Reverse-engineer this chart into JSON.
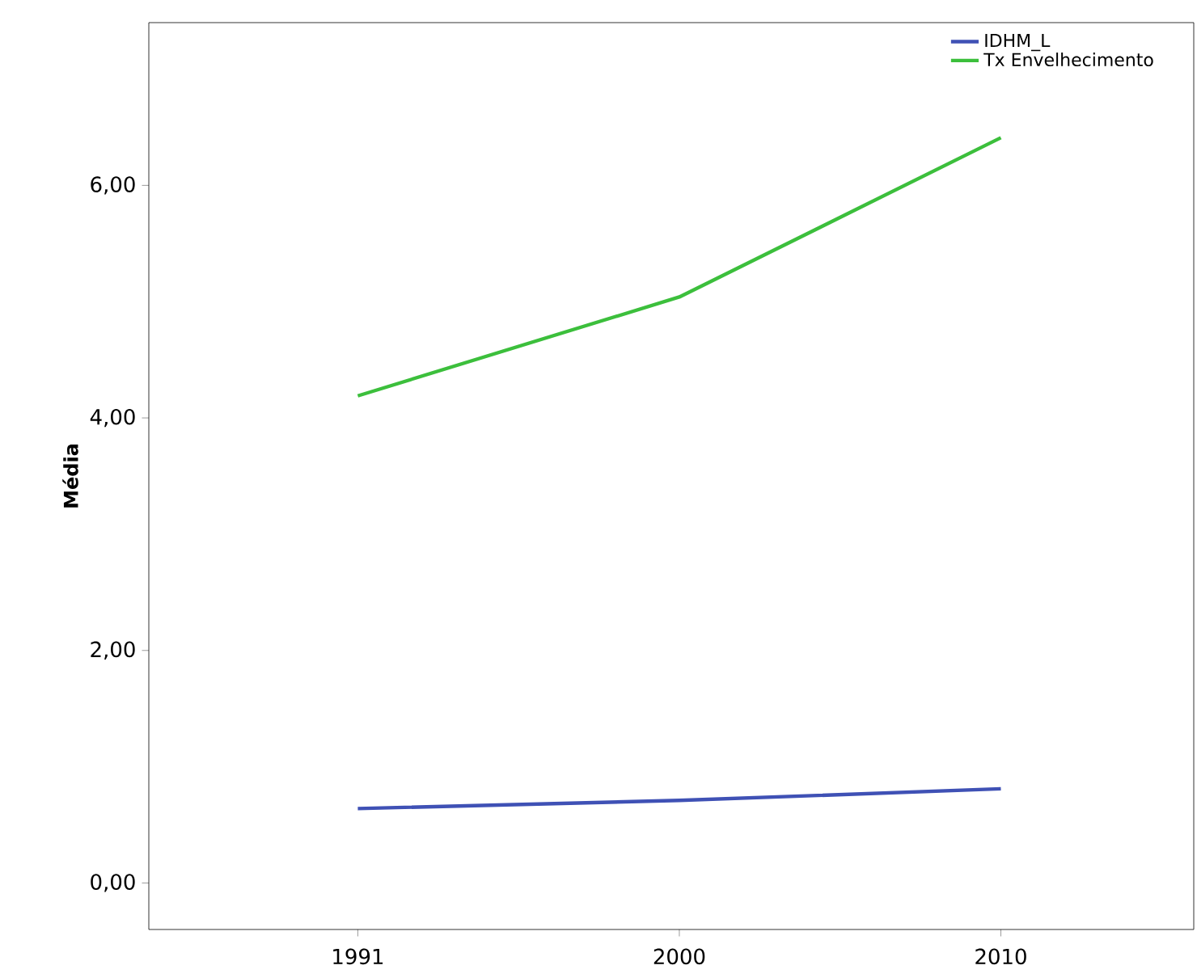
{
  "chart_data": {
    "type": "line",
    "ylabel": "Média",
    "categories": [
      "1991",
      "2000",
      "2010"
    ],
    "series": [
      {
        "name": "IDHM_L",
        "color": "#3f51b5",
        "values": [
          0.64,
          0.71,
          0.81
        ]
      },
      {
        "name": "Tx Envelhecimento",
        "color": "#3cbf3c",
        "values": [
          4.19,
          5.04,
          6.41
        ]
      }
    ],
    "ylim": [
      -0.4,
      7.4
    ],
    "yticks": [
      {
        "value": 0,
        "label": "0,00"
      },
      {
        "value": 2,
        "label": "2,00"
      },
      {
        "value": 4,
        "label": "4,00"
      },
      {
        "value": 6,
        "label": "6,00"
      }
    ],
    "legend": "top right",
    "marker": "none",
    "line_style": "solid",
    "grid": false
  }
}
